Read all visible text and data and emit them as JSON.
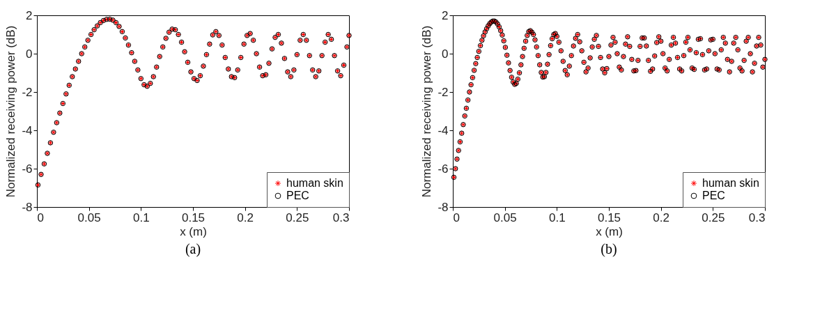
{
  "chart_data": [
    {
      "type": "scatter",
      "xlabel": "x (m)",
      "ylabel": "Normalized receiving power (dB)",
      "annotations": [
        "(a)"
      ],
      "xlim": [
        0,
        0.3
      ],
      "ylim": [
        -8,
        2
      ],
      "xticks": [
        0,
        0.05,
        0.1,
        0.15,
        0.2,
        0.25,
        0.3
      ],
      "yticks": [
        -8,
        -6,
        -4,
        -2,
        0,
        2
      ],
      "legend": "bottom right",
      "x": [
        0.001,
        0.004,
        0.007,
        0.01,
        0.013,
        0.016,
        0.019,
        0.022,
        0.025,
        0.028,
        0.031,
        0.034,
        0.037,
        0.04,
        0.043,
        0.046,
        0.049,
        0.052,
        0.055,
        0.058,
        0.061,
        0.064,
        0.067,
        0.07,
        0.073,
        0.076,
        0.079,
        0.082,
        0.085,
        0.088,
        0.091,
        0.094,
        0.097,
        0.1,
        0.103,
        0.106,
        0.109,
        0.112,
        0.115,
        0.118,
        0.121,
        0.124,
        0.127,
        0.13,
        0.133,
        0.136,
        0.139,
        0.142,
        0.145,
        0.148,
        0.151,
        0.154,
        0.157,
        0.16,
        0.163,
        0.166,
        0.169,
        0.172,
        0.175,
        0.178,
        0.181,
        0.184,
        0.187,
        0.19,
        0.193,
        0.196,
        0.199,
        0.202,
        0.205,
        0.208,
        0.211,
        0.214,
        0.217,
        0.22,
        0.223,
        0.226,
        0.229,
        0.232,
        0.235,
        0.238,
        0.241,
        0.244,
        0.247,
        0.25,
        0.253,
        0.256,
        0.259,
        0.262,
        0.265,
        0.268,
        0.271,
        0.274,
        0.277,
        0.28,
        0.283,
        0.286,
        0.289,
        0.292,
        0.295,
        0.298,
        0.3
      ],
      "series": [
        {
          "name": "human skin",
          "color": "#ff0000",
          "marker": "cross",
          "values": [
            -6.85,
            -6.3,
            -5.75,
            -5.2,
            -4.65,
            -4.1,
            -3.6,
            -3.1,
            -2.6,
            -2.1,
            -1.65,
            -1.2,
            -0.8,
            -0.4,
            0.0,
            0.35,
            0.7,
            1.0,
            1.25,
            1.45,
            1.62,
            1.73,
            1.79,
            1.8,
            1.75,
            1.62,
            1.42,
            1.15,
            0.82,
            0.45,
            0.05,
            -0.4,
            -0.85,
            -1.3,
            -1.62,
            -1.7,
            -1.55,
            -1.2,
            -0.7,
            -0.15,
            0.35,
            0.8,
            1.12,
            1.28,
            1.25,
            1.0,
            0.6,
            0.1,
            -0.45,
            -0.95,
            -1.3,
            -1.4,
            -1.15,
            -0.65,
            -0.05,
            0.5,
            0.98,
            1.15,
            0.95,
            0.45,
            -0.2,
            -0.8,
            -1.2,
            -1.25,
            -0.85,
            -0.2,
            0.5,
            0.95,
            1.05,
            0.7,
            0.0,
            -0.7,
            -1.15,
            -1.1,
            -0.5,
            0.25,
            0.85,
            1.0,
            0.55,
            -0.25,
            -0.95,
            -1.2,
            -0.85,
            -0.05,
            0.7,
            1.0,
            0.7,
            -0.1,
            -0.85,
            -1.2,
            -0.9,
            -0.1,
            0.6,
            1.0,
            0.75,
            -0.1,
            -0.9,
            -1.15,
            -0.6,
            0.35,
            0.95
          ]
        },
        {
          "name": "PEC",
          "color": "#000000",
          "marker": "circle",
          "values": [
            -6.85,
            -6.3,
            -5.75,
            -5.2,
            -4.65,
            -4.1,
            -3.6,
            -3.1,
            -2.6,
            -2.1,
            -1.65,
            -1.2,
            -0.8,
            -0.4,
            0.0,
            0.35,
            0.7,
            1.0,
            1.25,
            1.45,
            1.62,
            1.73,
            1.79,
            1.8,
            1.75,
            1.62,
            1.42,
            1.15,
            0.82,
            0.45,
            0.05,
            -0.4,
            -0.85,
            -1.3,
            -1.62,
            -1.7,
            -1.55,
            -1.2,
            -0.7,
            -0.15,
            0.35,
            0.8,
            1.12,
            1.28,
            1.25,
            1.0,
            0.6,
            0.1,
            -0.45,
            -0.95,
            -1.3,
            -1.4,
            -1.15,
            -0.65,
            -0.05,
            0.5,
            0.98,
            1.15,
            0.95,
            0.45,
            -0.2,
            -0.8,
            -1.2,
            -1.25,
            -0.85,
            -0.2,
            0.5,
            0.95,
            1.05,
            0.7,
            0.0,
            -0.7,
            -1.15,
            -1.1,
            -0.5,
            0.25,
            0.85,
            1.0,
            0.55,
            -0.25,
            -0.95,
            -1.2,
            -0.85,
            -0.05,
            0.7,
            1.0,
            0.7,
            -0.1,
            -0.85,
            -1.2,
            -0.9,
            -0.1,
            0.6,
            1.0,
            0.75,
            -0.1,
            -0.9,
            -1.15,
            -0.6,
            0.35,
            0.95
          ]
        }
      ]
    },
    {
      "type": "scatter",
      "xlabel": "x (m)",
      "ylabel": "Normalized receiving power (dB)",
      "annotations": [
        "(b)"
      ],
      "xlim": [
        0,
        0.3
      ],
      "ylim": [
        -8,
        2
      ],
      "xticks": [
        0,
        0.05,
        0.1,
        0.15,
        0.2,
        0.25,
        0.3
      ],
      "yticks": [
        -8,
        -6,
        -4,
        -2,
        0,
        2
      ],
      "legend": "bottom right",
      "x": [
        0.001,
        0.0025,
        0.004,
        0.0055,
        0.007,
        0.0085,
        0.01,
        0.0115,
        0.013,
        0.0145,
        0.016,
        0.0175,
        0.019,
        0.0205,
        0.022,
        0.0235,
        0.025,
        0.0265,
        0.028,
        0.0295,
        0.031,
        0.0325,
        0.034,
        0.0355,
        0.037,
        0.0385,
        0.04,
        0.0415,
        0.043,
        0.0445,
        0.046,
        0.0475,
        0.049,
        0.0505,
        0.052,
        0.0535,
        0.055,
        0.0565,
        0.058,
        0.0595,
        0.061,
        0.0625,
        0.064,
        0.0655,
        0.067,
        0.0685,
        0.07,
        0.0715,
        0.073,
        0.0745,
        0.076,
        0.0775,
        0.079,
        0.0805,
        0.082,
        0.0835,
        0.085,
        0.0865,
        0.088,
        0.0895,
        0.091,
        0.0925,
        0.094,
        0.0955,
        0.097,
        0.0985,
        0.1,
        0.102,
        0.104,
        0.106,
        0.108,
        0.11,
        0.112,
        0.114,
        0.116,
        0.118,
        0.12,
        0.122,
        0.124,
        0.126,
        0.128,
        0.13,
        0.132,
        0.134,
        0.136,
        0.138,
        0.14,
        0.142,
        0.144,
        0.146,
        0.148,
        0.15,
        0.152,
        0.154,
        0.156,
        0.158,
        0.16,
        0.162,
        0.164,
        0.166,
        0.168,
        0.17,
        0.172,
        0.174,
        0.176,
        0.178,
        0.18,
        0.182,
        0.184,
        0.186,
        0.188,
        0.19,
        0.192,
        0.194,
        0.196,
        0.198,
        0.2,
        0.202,
        0.204,
        0.206,
        0.208,
        0.21,
        0.212,
        0.214,
        0.216,
        0.218,
        0.22,
        0.222,
        0.224,
        0.226,
        0.228,
        0.23,
        0.232,
        0.234,
        0.236,
        0.238,
        0.24,
        0.242,
        0.244,
        0.246,
        0.248,
        0.25,
        0.252,
        0.254,
        0.256,
        0.258,
        0.26,
        0.262,
        0.264,
        0.266,
        0.268,
        0.27,
        0.272,
        0.274,
        0.276,
        0.278,
        0.28,
        0.282,
        0.284,
        0.286,
        0.288,
        0.29,
        0.292,
        0.294,
        0.296,
        0.298,
        0.3
      ],
      "series": [
        {
          "name": "human skin",
          "color": "#ff0000",
          "marker": "cross",
          "values": [
            -6.45,
            -6.0,
            -5.5,
            -5.05,
            -4.6,
            -4.15,
            -3.7,
            -3.25,
            -2.85,
            -2.42,
            -2.0,
            -1.62,
            -1.25,
            -0.87,
            -0.52,
            -0.2,
            0.12,
            0.42,
            0.7,
            0.93,
            1.13,
            1.3,
            1.45,
            1.57,
            1.65,
            1.7,
            1.7,
            1.65,
            1.55,
            1.4,
            1.2,
            0.97,
            0.67,
            0.33,
            -0.08,
            -0.48,
            -0.88,
            -1.23,
            -1.48,
            -1.6,
            -1.55,
            -1.33,
            -1.0,
            -0.58,
            -0.15,
            0.28,
            0.65,
            0.95,
            1.15,
            1.2,
            1.12,
            1.0,
            0.72,
            0.35,
            -0.1,
            -0.58,
            -0.98,
            -1.22,
            -1.2,
            -0.98,
            -0.55,
            -0.05,
            0.42,
            0.78,
            1.0,
            1.05,
            0.9,
            0.6,
            0.15,
            -0.4,
            -0.88,
            -1.1,
            -0.65,
            -0.1,
            0.4,
            0.8,
            1.0,
            0.62,
            0.15,
            -0.45,
            -0.95,
            -0.75,
            -0.22,
            0.35,
            0.75,
            0.95,
            0.38,
            -0.2,
            -0.8,
            -1.0,
            -0.78,
            -0.15,
            0.45,
            0.85,
            0.6,
            0.0,
            -0.7,
            -0.85,
            -0.15,
            0.5,
            0.88,
            0.38,
            -0.3,
            -0.9,
            -0.88,
            -0.35,
            0.38,
            0.82,
            0.82,
            0.4,
            -0.35,
            -0.92,
            -0.8,
            -0.12,
            0.58,
            0.88,
            0.65,
            0.0,
            -0.75,
            -0.9,
            -0.3,
            0.45,
            0.85,
            0.55,
            -0.2,
            -0.8,
            -0.9,
            -0.1,
            0.6,
            0.85,
            0.2,
            -0.75,
            -0.82,
            0.05,
            0.75,
            0.78,
            -0.05,
            -0.85,
            -0.8,
            0.15,
            0.72,
            0.75,
            0.0,
            -0.8,
            -0.85,
            0.2,
            0.85,
            0.55,
            -0.3,
            -0.95,
            -0.4,
            0.55,
            0.85,
            0.2,
            -0.75,
            -0.9,
            -0.35,
            0.65,
            0.85,
            0.0,
            -0.95,
            -0.5,
            0.4,
            0.85,
            0.45,
            -0.7,
            -0.3
          ]
        },
        {
          "name": "PEC",
          "color": "#000000",
          "marker": "circle",
          "values": [
            -6.45,
            -6.0,
            -5.5,
            -5.05,
            -4.6,
            -4.15,
            -3.7,
            -3.25,
            -2.85,
            -2.42,
            -2.0,
            -1.62,
            -1.25,
            -0.87,
            -0.52,
            -0.2,
            0.12,
            0.42,
            0.7,
            0.93,
            1.13,
            1.3,
            1.45,
            1.57,
            1.65,
            1.7,
            1.7,
            1.65,
            1.55,
            1.4,
            1.2,
            0.97,
            0.67,
            0.33,
            -0.08,
            -0.48,
            -0.88,
            -1.23,
            -1.48,
            -1.6,
            -1.55,
            -1.33,
            -1.0,
            -0.58,
            -0.15,
            0.28,
            0.65,
            0.95,
            1.15,
            1.2,
            1.12,
            1.0,
            0.72,
            0.35,
            -0.1,
            -0.58,
            -0.98,
            -1.22,
            -1.2,
            -0.98,
            -0.55,
            -0.05,
            0.42,
            0.78,
            1.0,
            1.05,
            0.9,
            0.6,
            0.15,
            -0.4,
            -0.88,
            -1.1,
            -0.65,
            -0.1,
            0.4,
            0.8,
            1.0,
            0.62,
            0.15,
            -0.45,
            -0.95,
            -0.75,
            -0.22,
            0.35,
            0.75,
            0.95,
            0.38,
            -0.2,
            -0.8,
            -1.0,
            -0.78,
            -0.15,
            0.45,
            0.85,
            0.6,
            0.0,
            -0.7,
            -0.85,
            -0.15,
            0.5,
            0.88,
            0.38,
            -0.3,
            -0.9,
            -0.88,
            -0.35,
            0.38,
            0.82,
            0.82,
            0.4,
            -0.35,
            -0.92,
            -0.8,
            -0.12,
            0.58,
            0.88,
            0.65,
            0.0,
            -0.75,
            -0.9,
            -0.3,
            0.45,
            0.85,
            0.55,
            -0.2,
            -0.8,
            -0.9,
            -0.1,
            0.6,
            0.85,
            0.2,
            -0.75,
            -0.82,
            0.05,
            0.75,
            0.78,
            -0.05,
            -0.85,
            -0.8,
            0.15,
            0.72,
            0.75,
            0.0,
            -0.8,
            -0.85,
            0.2,
            0.85,
            0.55,
            -0.3,
            -0.95,
            -0.4,
            0.55,
            0.85,
            0.2,
            -0.75,
            -0.9,
            -0.35,
            0.65,
            0.85,
            0.0,
            -0.95,
            -0.5,
            0.4,
            0.85,
            0.45,
            -0.7,
            -0.3
          ]
        }
      ]
    }
  ]
}
